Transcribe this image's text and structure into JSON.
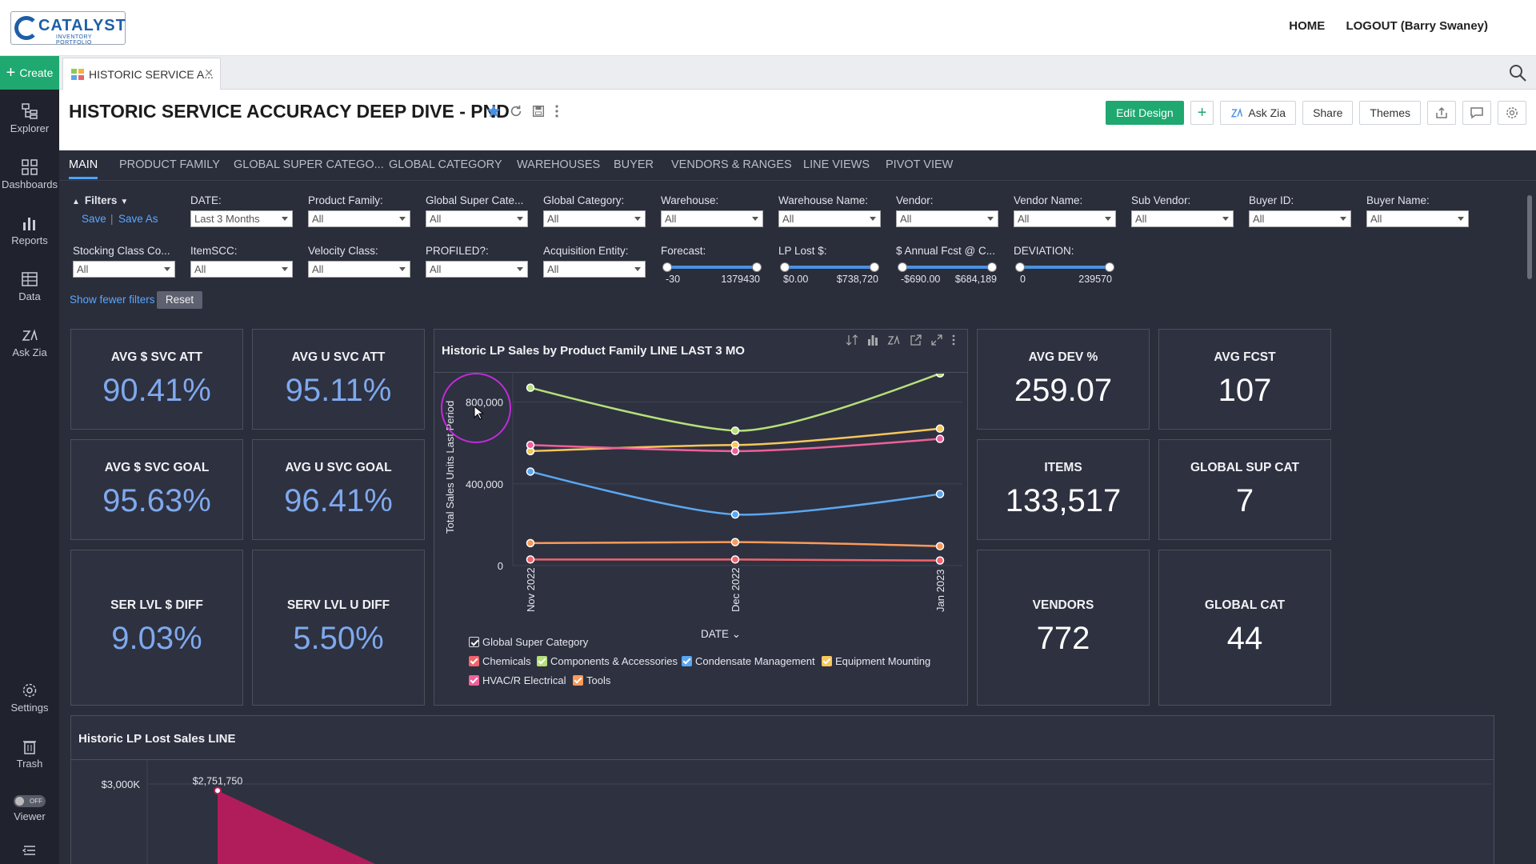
{
  "app": {
    "logo_name": "CATALYST",
    "logo_sub": "INVENTORY PORTFOLIO",
    "top_links": [
      "HOME",
      "LOGOUT (Barry Swaney)"
    ]
  },
  "tabstrip": {
    "create_label": "Create",
    "open_tab": "HISTORIC SERVICE A..."
  },
  "leftnav": {
    "items": [
      "Explorer",
      "Dashboards",
      "Reports",
      "Data",
      "Ask Zia"
    ],
    "bottom": [
      "Settings",
      "Trash",
      "Viewer"
    ],
    "viewer_toggle": "OFF"
  },
  "header": {
    "title": "HISTORIC SERVICE ACCURACY DEEP DIVE - PND",
    "buttons": {
      "edit": "Edit Design",
      "askzia": "Ask Zia",
      "share": "Share",
      "themes": "Themes"
    }
  },
  "dashtabs": [
    "MAIN",
    "PRODUCT FAMILY",
    "GLOBAL SUPER CATEGO...",
    "GLOBAL CATEGORY",
    "WAREHOUSES",
    "BUYER",
    "VENDORS & RANGES",
    "LINE VIEWS",
    "PIVOT VIEW"
  ],
  "filters": {
    "title": "Filters",
    "save": "Save",
    "save_as": "Save As",
    "row1": [
      {
        "label": "DATE:",
        "value": "Last 3 Months"
      },
      {
        "label": "Product Family:",
        "value": "All"
      },
      {
        "label": "Global Super Cate...",
        "value": "All"
      },
      {
        "label": "Global Category:",
        "value": "All"
      },
      {
        "label": "Warehouse:",
        "value": "All"
      },
      {
        "label": "Warehouse Name:",
        "value": "All"
      },
      {
        "label": "Vendor:",
        "value": "All"
      },
      {
        "label": "Vendor Name:",
        "value": "All"
      },
      {
        "label": "Sub Vendor:",
        "value": "All"
      },
      {
        "label": "Buyer ID:",
        "value": "All"
      },
      {
        "label": "Buyer Name:",
        "value": "All"
      }
    ],
    "row2": [
      {
        "label": "Stocking Class Co...",
        "value": "All"
      },
      {
        "label": "ItemSCC:",
        "value": "All"
      },
      {
        "label": "Velocity Class:",
        "value": "All"
      },
      {
        "label": "PROFILED?:",
        "value": "All"
      },
      {
        "label": "Acquisition Entity:",
        "value": "All"
      }
    ],
    "sliders": [
      {
        "label": "Forecast:",
        "min": "-30",
        "max": "1379430"
      },
      {
        "label": "LP Lost $:",
        "min": "$0.00",
        "max": "$738,720"
      },
      {
        "label": "$ Annual Fcst @ C...",
        "min": "-$690.00",
        "max": "$684,189"
      },
      {
        "label": "DEVIATION:",
        "min": "0",
        "max": "239570"
      }
    ],
    "show_fewer": "Show fewer filters",
    "reset": "Reset"
  },
  "kpis": {
    "avg_svc_att_d": {
      "label": "AVG $ SVC ATT",
      "value": "90.41%"
    },
    "avg_svc_att_u": {
      "label": "AVG U SVC ATT",
      "value": "95.11%"
    },
    "avg_svc_goal_d": {
      "label": "AVG $ SVC GOAL",
      "value": "95.63%"
    },
    "avg_svc_goal_u": {
      "label": "AVG U SVC GOAL",
      "value": "96.41%"
    },
    "ser_lvl_d": {
      "label": "SER LVL $ DIFF",
      "value": "9.03%"
    },
    "serv_lvl_u": {
      "label": "SERV LVL U DIFF",
      "value": "5.50%"
    },
    "avg_dev": {
      "label": "AVG DEV %",
      "value": "259.07"
    },
    "avg_fcst": {
      "label": "AVG FCST",
      "value": "107"
    },
    "items": {
      "label": "ITEMS",
      "value": "133,517"
    },
    "global_sup_cat": {
      "label": "GLOBAL SUP CAT",
      "value": "7"
    },
    "vendors": {
      "label": "VENDORS",
      "value": "772"
    },
    "global_cat": {
      "label": "GLOBAL CAT",
      "value": "44"
    }
  },
  "colors": {
    "chemicals": "#f0656b",
    "components": "#b5e07a",
    "condensate": "#5aa7f0",
    "equipment": "#f7c75a",
    "hvac": "#f0609a",
    "tools": "#f99a5a",
    "lost_area": "#b01d5a"
  },
  "chart_data": [
    {
      "type": "line",
      "title": "Historic LP Sales by Product Family LINE LAST 3 MO",
      "ylabel": "Total Sales Units Last Period",
      "xlabel": "DATE",
      "ylim": [
        0,
        900000
      ],
      "y_ticks": [
        "0",
        "400,000",
        "800,000"
      ],
      "categories": [
        "Nov 2022",
        "Dec 2022",
        "Jan 2023"
      ],
      "legend_title": "Global Super Category",
      "series": [
        {
          "name": "Chemicals",
          "values": [
            30000,
            30000,
            25000
          ]
        },
        {
          "name": "Components & Accessories",
          "values": [
            870000,
            660000,
            940000
          ]
        },
        {
          "name": "Condensate Management",
          "values": [
            460000,
            250000,
            350000
          ]
        },
        {
          "name": "Equipment Mounting",
          "values": [
            560000,
            590000,
            670000
          ]
        },
        {
          "name": "HVAC/R Electrical",
          "values": [
            590000,
            560000,
            620000
          ]
        },
        {
          "name": "Tools",
          "values": [
            110000,
            115000,
            95000
          ]
        }
      ]
    },
    {
      "type": "area",
      "title": "Historic LP Lost Sales LINE",
      "y_ticks": [
        "$3,000K"
      ],
      "data_labels": [
        "$2,751,750"
      ],
      "values": [
        2751750
      ]
    }
  ]
}
